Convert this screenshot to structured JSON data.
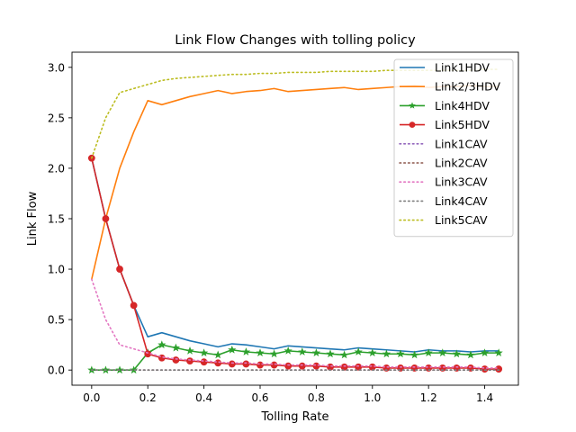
{
  "chart_data": {
    "type": "line",
    "title": "Link Flow Changes with tolling policy",
    "xlabel": "Tolling Rate",
    "ylabel": "Link Flow",
    "xlim": [
      -0.07,
      1.52
    ],
    "ylim": [
      -0.15,
      3.15
    ],
    "xticks": [
      0.0,
      0.2,
      0.4,
      0.6,
      0.8,
      1.0,
      1.2,
      1.4
    ],
    "xtick_labels": [
      "0.0",
      "0.2",
      "0.4",
      "0.6",
      "0.8",
      "1.0",
      "1.2",
      "1.4"
    ],
    "yticks": [
      0.0,
      0.5,
      1.0,
      1.5,
      2.0,
      2.5,
      3.0
    ],
    "ytick_labels": [
      "0.0",
      "0.5",
      "1.0",
      "1.5",
      "2.0",
      "2.5",
      "3.0"
    ],
    "grid": false,
    "legend_position": "top-right",
    "x": [
      0.0,
      0.05,
      0.1,
      0.15,
      0.2,
      0.25,
      0.3,
      0.35,
      0.4,
      0.45,
      0.5,
      0.55,
      0.6,
      0.65,
      0.7,
      0.75,
      0.8,
      0.85,
      0.9,
      0.95,
      1.0,
      1.05,
      1.1,
      1.15,
      1.2,
      1.25,
      1.3,
      1.35,
      1.4,
      1.45
    ],
    "series": [
      {
        "name": "Link1HDV",
        "color": "#1f77b4",
        "style": "solid",
        "marker": "none",
        "values": [
          2.1,
          1.5,
          1.0,
          0.64,
          0.33,
          0.37,
          0.33,
          0.29,
          0.26,
          0.23,
          0.26,
          0.25,
          0.23,
          0.21,
          0.24,
          0.23,
          0.22,
          0.21,
          0.2,
          0.22,
          0.21,
          0.2,
          0.19,
          0.18,
          0.2,
          0.19,
          0.19,
          0.18,
          0.19,
          0.19
        ]
      },
      {
        "name": "Link2/3HDV",
        "color": "#ff7f0e",
        "style": "solid",
        "marker": "none",
        "values": [
          0.9,
          1.5,
          2.0,
          2.36,
          2.67,
          2.63,
          2.67,
          2.71,
          2.74,
          2.77,
          2.74,
          2.76,
          2.77,
          2.79,
          2.76,
          2.77,
          2.78,
          2.79,
          2.8,
          2.78,
          2.79,
          2.8,
          2.81,
          2.82,
          2.8,
          2.81,
          2.81,
          2.82,
          2.81,
          2.81
        ]
      },
      {
        "name": "Link4HDV",
        "color": "#2ca02c",
        "style": "solid",
        "marker": "star",
        "values": [
          0.0,
          0.0,
          0.0,
          0.0,
          0.17,
          0.25,
          0.22,
          0.19,
          0.17,
          0.15,
          0.2,
          0.18,
          0.17,
          0.16,
          0.19,
          0.18,
          0.17,
          0.16,
          0.15,
          0.18,
          0.17,
          0.16,
          0.16,
          0.15,
          0.17,
          0.17,
          0.16,
          0.15,
          0.17,
          0.17
        ]
      },
      {
        "name": "Link5HDV",
        "color": "#d62728",
        "style": "solid",
        "marker": "circle",
        "values": [
          2.1,
          1.5,
          1.0,
          0.64,
          0.16,
          0.12,
          0.1,
          0.09,
          0.08,
          0.07,
          0.06,
          0.06,
          0.05,
          0.05,
          0.04,
          0.04,
          0.04,
          0.03,
          0.03,
          0.03,
          0.03,
          0.02,
          0.02,
          0.02,
          0.02,
          0.02,
          0.02,
          0.02,
          0.01,
          0.01
        ]
      },
      {
        "name": "Link1CAV",
        "color": "#9467bd",
        "style": "dotted",
        "marker": "none",
        "values": [
          0.0,
          0.0,
          0.0,
          0.0,
          0.0,
          0.0,
          0.0,
          0.0,
          0.0,
          0.0,
          0.0,
          0.0,
          0.0,
          0.0,
          0.0,
          0.0,
          0.0,
          0.0,
          0.0,
          0.0,
          0.0,
          0.0,
          0.0,
          0.0,
          0.0,
          0.0,
          0.0,
          0.0,
          0.0,
          0.0
        ]
      },
      {
        "name": "Link2CAV",
        "color": "#8c564b",
        "style": "dotted",
        "marker": "none",
        "values": [
          0.0,
          0.0,
          0.0,
          0.0,
          0.0,
          0.0,
          0.0,
          0.0,
          0.0,
          0.0,
          0.0,
          0.0,
          0.0,
          0.0,
          0.0,
          0.0,
          0.0,
          0.0,
          0.0,
          0.0,
          0.0,
          0.0,
          0.0,
          0.0,
          0.0,
          0.0,
          0.0,
          0.0,
          0.0,
          0.0
        ]
      },
      {
        "name": "Link3CAV",
        "color": "#e377c2",
        "style": "dotted",
        "marker": "none",
        "values": [
          0.9,
          0.5,
          0.25,
          0.21,
          0.17,
          0.13,
          0.11,
          0.1,
          0.09,
          0.08,
          0.07,
          0.07,
          0.06,
          0.06,
          0.05,
          0.05,
          0.05,
          0.04,
          0.04,
          0.04,
          0.04,
          0.03,
          0.03,
          0.03,
          0.03,
          0.03,
          0.03,
          0.03,
          0.02,
          0.02
        ]
      },
      {
        "name": "Link4CAV",
        "color": "#7f7f7f",
        "style": "dotted",
        "marker": "none",
        "values": [
          0.0,
          0.0,
          0.0,
          0.0,
          0.0,
          0.0,
          0.0,
          0.0,
          0.0,
          0.0,
          0.0,
          0.0,
          0.0,
          0.0,
          0.0,
          0.0,
          0.0,
          0.0,
          0.0,
          0.0,
          0.0,
          0.0,
          0.0,
          0.0,
          0.0,
          0.0,
          0.0,
          0.0,
          0.0,
          0.0
        ]
      },
      {
        "name": "Link5CAV",
        "color": "#bcbd22",
        "style": "dotted",
        "marker": "none",
        "values": [
          2.1,
          2.5,
          2.75,
          2.79,
          2.83,
          2.87,
          2.89,
          2.9,
          2.91,
          2.92,
          2.93,
          2.93,
          2.94,
          2.94,
          2.95,
          2.95,
          2.95,
          2.96,
          2.96,
          2.96,
          2.96,
          2.97,
          2.97,
          2.97,
          2.97,
          2.97,
          2.97,
          2.97,
          2.98,
          2.98
        ]
      }
    ]
  }
}
